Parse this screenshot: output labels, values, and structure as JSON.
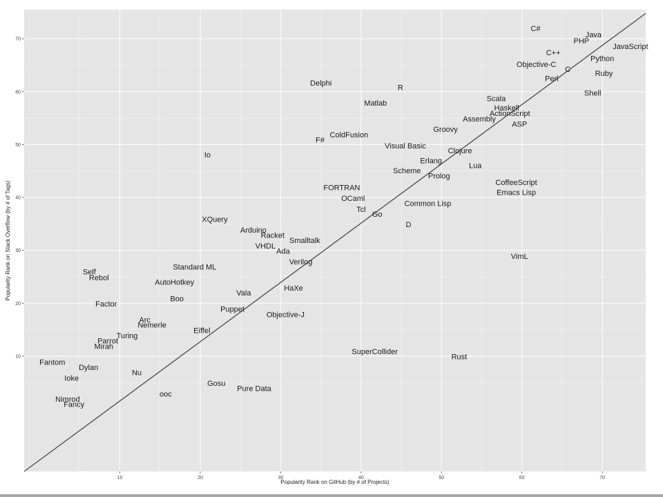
{
  "chart_data": {
    "type": "scatter",
    "title": "",
    "xlabel": "Popularity Rank on GitHub (by # of Projects)",
    "ylabel": "Popularity Rank on Stack Overflow (by # of Tags)",
    "xlim": [
      -1.9,
      75.4
    ],
    "ylim": [
      -11.8,
      75.5
    ],
    "x_ticks": [
      10,
      20,
      30,
      40,
      50,
      60,
      70
    ],
    "y_ticks": [
      10,
      20,
      30,
      40,
      50,
      60,
      70
    ],
    "grid": true,
    "background": "#e5e5e5",
    "grid_color": "#ffffff",
    "fit_line": [
      [
        -1.9,
        -11.8
      ],
      [
        75.4,
        74.8
      ]
    ],
    "points": [
      {
        "label": "C#",
        "x": 61.7,
        "y": 72.0
      },
      {
        "label": "Java",
        "x": 68.9,
        "y": 70.8
      },
      {
        "label": "PHP",
        "x": 67.4,
        "y": 69.6
      },
      {
        "label": "JavaScript",
        "x": 73.5,
        "y": 68.6
      },
      {
        "label": "C++",
        "x": 63.9,
        "y": 67.4
      },
      {
        "label": "Python",
        "x": 70.0,
        "y": 66.3
      },
      {
        "label": "Objective-C",
        "x": 61.8,
        "y": 65.2
      },
      {
        "label": "C",
        "x": 65.7,
        "y": 64.3
      },
      {
        "label": "Ruby",
        "x": 70.2,
        "y": 63.5
      },
      {
        "label": "Perl",
        "x": 63.7,
        "y": 62.5
      },
      {
        "label": "Delphi",
        "x": 35.0,
        "y": 61.7
      },
      {
        "label": "R",
        "x": 44.9,
        "y": 60.8
      },
      {
        "label": "Shell",
        "x": 68.8,
        "y": 59.8
      },
      {
        "label": "Scala",
        "x": 56.8,
        "y": 58.7
      },
      {
        "label": "Matlab",
        "x": 41.8,
        "y": 57.9
      },
      {
        "label": "Haskell",
        "x": 58.1,
        "y": 57.0
      },
      {
        "label": "ActionScript",
        "x": 58.5,
        "y": 55.9
      },
      {
        "label": "Assembly",
        "x": 54.7,
        "y": 54.9
      },
      {
        "label": "ASP",
        "x": 59.7,
        "y": 53.9
      },
      {
        "label": "Groovy",
        "x": 50.5,
        "y": 52.9
      },
      {
        "label": "ColdFusion",
        "x": 38.5,
        "y": 51.9
      },
      {
        "label": "F#",
        "x": 34.9,
        "y": 50.9
      },
      {
        "label": "Visual Basic",
        "x": 45.5,
        "y": 49.8
      },
      {
        "label": "Clojure",
        "x": 52.3,
        "y": 48.9
      },
      {
        "label": "Io",
        "x": 20.9,
        "y": 48.1
      },
      {
        "label": "Erlang",
        "x": 48.7,
        "y": 47.0
      },
      {
        "label": "Lua",
        "x": 54.2,
        "y": 46.1
      },
      {
        "label": "Scheme",
        "x": 45.7,
        "y": 45.1
      },
      {
        "label": "Prolog",
        "x": 49.7,
        "y": 44.1
      },
      {
        "label": "CoffeeScript",
        "x": 59.3,
        "y": 42.9
      },
      {
        "label": "FORTRAN",
        "x": 37.6,
        "y": 41.9
      },
      {
        "label": "Emacs Lisp",
        "x": 59.3,
        "y": 41.0
      },
      {
        "label": "OCaml",
        "x": 39.0,
        "y": 39.9
      },
      {
        "label": "Common Lisp",
        "x": 48.3,
        "y": 38.9
      },
      {
        "label": "Tcl",
        "x": 40.0,
        "y": 37.8
      },
      {
        "label": "Go",
        "x": 42.0,
        "y": 36.9
      },
      {
        "label": "XQuery",
        "x": 21.8,
        "y": 35.9
      },
      {
        "label": "D",
        "x": 45.9,
        "y": 34.9
      },
      {
        "label": "Arduino",
        "x": 26.6,
        "y": 33.9
      },
      {
        "label": "Racket",
        "x": 29.0,
        "y": 32.9
      },
      {
        "label": "Smalltalk",
        "x": 33.0,
        "y": 31.9
      },
      {
        "label": "VHDL",
        "x": 28.1,
        "y": 30.9
      },
      {
        "label": "Ada",
        "x": 30.3,
        "y": 29.9
      },
      {
        "label": "VimL",
        "x": 59.7,
        "y": 28.9
      },
      {
        "label": "Verilog",
        "x": 32.5,
        "y": 27.9
      },
      {
        "label": "Standard ML",
        "x": 19.3,
        "y": 26.9
      },
      {
        "label": "Self",
        "x": 6.2,
        "y": 26.0
      },
      {
        "label": "Rebol",
        "x": 7.4,
        "y": 24.9
      },
      {
        "label": "AutoHotkey",
        "x": 16.8,
        "y": 24.0
      },
      {
        "label": "HaXe",
        "x": 31.6,
        "y": 22.9
      },
      {
        "label": "Vala",
        "x": 25.4,
        "y": 22.0
      },
      {
        "label": "Boo",
        "x": 17.1,
        "y": 20.9
      },
      {
        "label": "Factor",
        "x": 8.3,
        "y": 19.9
      },
      {
        "label": "Puppet",
        "x": 24.0,
        "y": 18.9
      },
      {
        "label": "Objective-J",
        "x": 30.6,
        "y": 17.9
      },
      {
        "label": "Arc",
        "x": 13.1,
        "y": 16.9
      },
      {
        "label": "Nemerle",
        "x": 14.0,
        "y": 15.9
      },
      {
        "label": "Eiffel",
        "x": 20.2,
        "y": 14.9
      },
      {
        "label": "Turing",
        "x": 10.9,
        "y": 13.9
      },
      {
        "label": "Parrot",
        "x": 8.5,
        "y": 12.9
      },
      {
        "label": "Mirah",
        "x": 8.0,
        "y": 11.9
      },
      {
        "label": "SuperCollider",
        "x": 41.7,
        "y": 10.9
      },
      {
        "label": "Rust",
        "x": 52.2,
        "y": 9.9
      },
      {
        "label": "Fantom",
        "x": 1.6,
        "y": 8.9
      },
      {
        "label": "Dylan",
        "x": 6.1,
        "y": 7.9
      },
      {
        "label": "Nu",
        "x": 12.1,
        "y": 6.9
      },
      {
        "label": "Ioke",
        "x": 4.0,
        "y": 5.9
      },
      {
        "label": "Gosu",
        "x": 22.0,
        "y": 4.9
      },
      {
        "label": "Pure Data",
        "x": 26.7,
        "y": 3.9
      },
      {
        "label": "ooc",
        "x": 15.7,
        "y": 2.9
      },
      {
        "label": "Nimrod",
        "x": 3.5,
        "y": 1.9
      },
      {
        "label": "Fancy",
        "x": 4.3,
        "y": 0.9
      }
    ]
  }
}
